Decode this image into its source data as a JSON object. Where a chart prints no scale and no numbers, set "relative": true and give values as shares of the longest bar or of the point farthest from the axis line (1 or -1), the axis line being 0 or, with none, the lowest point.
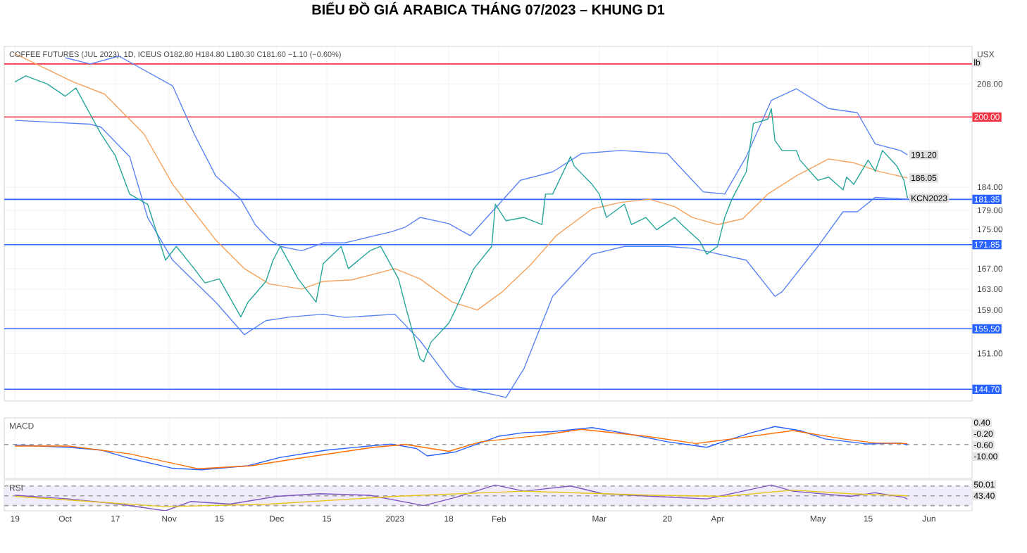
{
  "chart_data": [
    {
      "type": "line",
      "title": "BIỂU ĐỒ GIÁ ARABICA THÁNG 07/2023 – KHUNG D1",
      "subtitle": "COFFEE FUTURES (JUL 2023), 1D, ICEUS O182.80 H184.80 L180.30 C181.60 −1.10 (−0.60%)",
      "ylabel": "USX",
      "log": "y",
      "grid": true,
      "tick_labels": "y",
      "xlim": [
        "2022-09-16",
        "2023-06-13"
      ],
      "ylim": [
        142.7,
        217.5
      ],
      "xticks": [
        {
          "value": "2022-09-19",
          "label": null
        },
        {
          "value": "2022-10-03",
          "label": null
        },
        {
          "value": "2022-10-17",
          "label": null
        },
        {
          "value": "2022-11-01",
          "label": null
        },
        {
          "value": "2022-11-15",
          "label": null
        },
        {
          "value": "2022-12-01",
          "label": null
        },
        {
          "value": "2022-12-15",
          "label": null
        },
        {
          "value": "2023-01-03",
          "label": null
        },
        {
          "value": "2023-01-18",
          "label": null
        },
        {
          "value": "2023-02-01",
          "label": null
        },
        {
          "value": "2023-03-01",
          "label": null
        },
        {
          "value": "2023-03-20",
          "label": null
        },
        {
          "value": "2023-04-03",
          "label": null
        },
        {
          "value": "2023-05-01",
          "label": null
        },
        {
          "value": "2023-05-15",
          "label": null
        },
        {
          "value": "2023-06-01",
          "label": null
        }
      ],
      "yticks": [
        {
          "value": 208,
          "label": "208.00"
        },
        {
          "value": 184,
          "label": "184.00"
        },
        {
          "value": 179,
          "label": "179.00"
        },
        {
          "value": 175,
          "label": "175.00"
        },
        {
          "value": 167,
          "label": "167.00"
        },
        {
          "value": 163,
          "label": "163.00"
        },
        {
          "value": 159,
          "label": "159.00"
        },
        {
          "value": 151,
          "label": "151.00"
        }
      ],
      "series": [
        {
          "color": "#5b84f5",
          "x": [
            "2022-10-03",
            "2022-10-10",
            "2022-10-18",
            "2022-11-02",
            "2022-11-08",
            "2022-11-14",
            "2022-11-21",
            "2022-11-25",
            "2022-11-29",
            "2022-12-02",
            "2022-12-08",
            "2022-12-14",
            "2022-12-20",
            "2023-01-02",
            "2023-01-06",
            "2023-01-10",
            "2023-01-18",
            "2023-01-24",
            "2023-02-01",
            "2023-02-07",
            "2023-02-16",
            "2023-02-24",
            "2023-03-07",
            "2023-03-20",
            "2023-03-30",
            "2023-04-05",
            "2023-04-11",
            "2023-04-18",
            "2023-04-25",
            "2023-05-04",
            "2023-05-12",
            "2023-05-17",
            "2023-05-24",
            "2023-05-26"
          ],
          "values": [
            214.6,
            213,
            215,
            207.5,
            196,
            186.5,
            181.4,
            176,
            172.8,
            171.5,
            170.6,
            172.2,
            172.2,
            174.5,
            175.5,
            177.5,
            176.2,
            173.7,
            180.3,
            185.5,
            187.4,
            191.5,
            192.2,
            191.5,
            183,
            182.5,
            190.8,
            204,
            206.8,
            202,
            201,
            193.7,
            192.2,
            191.2
          ]
        },
        {
          "color": "#f5a25d",
          "x": [
            "2022-09-19",
            "2022-10-05",
            "2022-10-14",
            "2022-10-25",
            "2022-11-02",
            "2022-11-14",
            "2022-11-22",
            "2022-11-29",
            "2022-12-08",
            "2022-12-14",
            "2022-12-22",
            "2023-01-03",
            "2023-01-10",
            "2023-01-19",
            "2023-01-26",
            "2023-02-02",
            "2023-02-10",
            "2023-02-17",
            "2023-02-27",
            "2023-03-07",
            "2023-03-15",
            "2023-03-22",
            "2023-03-27",
            "2023-04-03",
            "2023-04-10",
            "2023-04-17",
            "2023-04-25",
            "2023-05-04",
            "2023-05-11",
            "2023-05-18",
            "2023-05-26"
          ],
          "values": [
            215.6,
            208.6,
            205.5,
            196,
            184.6,
            172.8,
            167,
            164,
            163,
            164.5,
            164.8,
            167,
            165,
            160.5,
            159,
            162.5,
            167.9,
            173.7,
            179.3,
            180.7,
            181.4,
            179.8,
            177.5,
            176,
            177.2,
            182.5,
            186.5,
            190.3,
            189.4,
            187.5,
            186.05
          ]
        },
        {
          "color": "#5b84f5",
          "x": [
            "2022-09-19",
            "2022-09-27",
            "2022-10-10",
            "2022-10-13",
            "2022-10-21",
            "2022-10-26",
            "2022-11-02",
            "2022-11-14",
            "2022-11-22",
            "2022-11-28",
            "2022-12-05",
            "2022-12-14",
            "2022-12-20",
            "2023-01-03",
            "2023-01-10",
            "2023-01-18",
            "2023-01-20",
            "2023-01-26",
            "2023-02-03",
            "2023-02-08",
            "2023-02-16",
            "2023-02-27",
            "2023-03-08",
            "2023-03-20",
            "2023-03-27",
            "2023-04-11",
            "2023-04-18",
            "2023-04-19",
            "2023-04-21",
            "2023-05-01",
            "2023-05-08",
            "2023-05-12",
            "2023-05-17",
            "2023-05-26"
          ],
          "values": [
            199.2,
            198.9,
            198.3,
            197.6,
            190.8,
            177.5,
            168.7,
            160.5,
            154.4,
            157,
            157.7,
            158.2,
            157.6,
            158.2,
            153.3,
            146.5,
            145.2,
            144.4,
            143.3,
            148.3,
            161.6,
            169.9,
            171.5,
            171.5,
            171.1,
            168.7,
            162.5,
            161.6,
            162.5,
            171.5,
            178.7,
            178.7,
            181.8,
            181.4
          ]
        },
        {
          "color": "#26a69a",
          "x": [
            "2022-09-19",
            "2022-09-22",
            "2022-09-28",
            "2022-10-03",
            "2022-10-06",
            "2022-10-13",
            "2022-10-17",
            "2022-10-21",
            "2022-10-26",
            "2022-10-31",
            "2022-11-03",
            "2022-11-08",
            "2022-11-11",
            "2022-11-15",
            "2022-11-21",
            "2022-11-23",
            "2022-11-28",
            "2022-11-30",
            "2022-12-02",
            "2022-12-07",
            "2022-12-12",
            "2022-12-14",
            "2022-12-19",
            "2022-12-21",
            "2022-12-27",
            "2022-12-30",
            "2023-01-04",
            "2023-01-06",
            "2023-01-10",
            "2023-01-11",
            "2023-01-13",
            "2023-01-18",
            "2023-01-20",
            "2023-01-25",
            "2023-01-30",
            "2023-01-31",
            "2023-02-03",
            "2023-02-08",
            "2023-02-13",
            "2023-02-14",
            "2023-02-16",
            "2023-02-21",
            "2023-02-22",
            "2023-02-27",
            "2023-03-01",
            "2023-03-03",
            "2023-03-08",
            "2023-03-10",
            "2023-03-14",
            "2023-03-17",
            "2023-03-22",
            "2023-03-24",
            "2023-03-29",
            "2023-03-31",
            "2023-04-03",
            "2023-04-05",
            "2023-04-07",
            "2023-04-11",
            "2023-04-13",
            "2023-04-17",
            "2023-04-18",
            "2023-04-19",
            "2023-04-21",
            "2023-04-25",
            "2023-04-26",
            "2023-05-01",
            "2023-05-04",
            "2023-05-08",
            "2023-05-09",
            "2023-05-11",
            "2023-05-15",
            "2023-05-17",
            "2023-05-19",
            "2023-05-23",
            "2023-05-25",
            "2023-05-26"
          ],
          "values": [
            208.5,
            210,
            208,
            205,
            207,
            196,
            191,
            182.5,
            180.3,
            168.7,
            171.5,
            167,
            164.2,
            165,
            157.7,
            160.5,
            164.5,
            168.7,
            171.5,
            165,
            160.5,
            168,
            171.5,
            167,
            170.6,
            171.5,
            165,
            159.6,
            150,
            149.5,
            153,
            156.5,
            159.2,
            167,
            171.5,
            180.3,
            176.8,
            177.5,
            176,
            182.5,
            182.5,
            190.8,
            188.7,
            184.6,
            182.5,
            177.5,
            180.3,
            176,
            177.5,
            174.9,
            177.5,
            176,
            172.6,
            169.9,
            171.5,
            177.5,
            181.4,
            187.4,
            198.5,
            199.5,
            202,
            194.5,
            192.2,
            192.2,
            190,
            185.5,
            186.2,
            183.4,
            186.2,
            184.6,
            190,
            187.5,
            192.2,
            188.7,
            185.5,
            181.6
          ]
        }
      ],
      "ref_lines": [
        {
          "axis": "y",
          "value": 213,
          "label": null,
          "color": "#f23645"
        },
        {
          "axis": "y",
          "value": 200,
          "label": "200.00",
          "color": "#f23645"
        },
        {
          "axis": "y",
          "value": 181.35,
          "label": "181.35",
          "color": "#2962ff"
        },
        {
          "axis": "y",
          "value": 171.85,
          "label": "171.85",
          "color": "#2962ff"
        },
        {
          "axis": "y",
          "value": 155.5,
          "label": "155.50",
          "color": "#2962ff"
        },
        {
          "axis": "y",
          "value": 144.7,
          "label": "144.70",
          "color": "#2962ff"
        }
      ],
      "annotations": [
        "lb",
        {
          "text": "191.20",
          "x": "2023-05-26",
          "y": 191.2
        },
        {
          "text": "186.05",
          "x": "2023-05-26",
          "y": 186.05
        },
        {
          "text": "KCN2023",
          "x": "2023-05-26",
          "y": 181.6
        }
      ]
    },
    {
      "type": "line",
      "title": "MACD",
      "grid": true,
      "relative": true,
      "tick_labels": false,
      "xlim": [
        "2022-09-16",
        "2023-06-13"
      ],
      "xticks": [
        {
          "value": "2022-09-19",
          "label": null
        },
        {
          "value": "2022-10-03",
          "label": null
        },
        {
          "value": "2022-10-17",
          "label": null
        },
        {
          "value": "2022-11-01",
          "label": null
        },
        {
          "value": "2022-11-15",
          "label": null
        },
        {
          "value": "2022-12-01",
          "label": null
        },
        {
          "value": "2022-12-15",
          "label": null
        },
        {
          "value": "2023-01-03",
          "label": null
        },
        {
          "value": "2023-01-18",
          "label": null
        },
        {
          "value": "2023-02-01",
          "label": null
        },
        {
          "value": "2023-03-01",
          "label": null
        },
        {
          "value": "2023-03-20",
          "label": null
        },
        {
          "value": "2023-04-03",
          "label": null
        },
        {
          "value": "2023-05-01",
          "label": null
        },
        {
          "value": "2023-05-15",
          "label": null
        },
        {
          "value": "2023-06-01",
          "label": null
        }
      ],
      "series": [
        {
          "color": "#2962ff",
          "x": [
            "2022-09-19",
            "2022-10-04",
            "2022-10-13",
            "2022-10-21",
            "2022-11-02",
            "2022-11-10",
            "2022-11-23",
            "2022-12-02",
            "2022-12-15",
            "2023-01-02",
            "2023-01-09",
            "2023-01-12",
            "2023-01-20",
            "2023-02-01",
            "2023-02-08",
            "2023-02-16",
            "2023-02-27",
            "2023-03-08",
            "2023-03-20",
            "2023-03-31",
            "2023-04-12",
            "2023-04-19",
            "2023-04-26",
            "2023-05-03",
            "2023-05-15",
            "2023-05-24",
            "2023-05-26"
          ],
          "values": [
            -0.02,
            -0.11,
            -0.22,
            -0.55,
            -0.94,
            -1,
            -0.84,
            -0.51,
            -0.22,
            0.02,
            -0.16,
            -0.45,
            -0.29,
            0.33,
            0.47,
            0.51,
            0.67,
            0.45,
            0.11,
            -0.11,
            0.45,
            0.71,
            0.55,
            0.22,
            0.02,
            0.06,
            -0.02
          ]
        },
        {
          "color": "#ff6d00",
          "x": [
            "2022-09-19",
            "2022-10-04",
            "2022-10-21",
            "2022-11-09",
            "2022-11-24",
            "2022-12-07",
            "2022-12-28",
            "2023-01-06",
            "2023-01-18",
            "2023-01-27",
            "2023-02-13",
            "2023-02-24",
            "2023-03-14",
            "2023-03-28",
            "2023-04-07",
            "2023-04-24",
            "2023-05-08",
            "2023-05-17",
            "2023-05-26"
          ],
          "values": [
            -0.06,
            -0.06,
            -0.37,
            -0.96,
            -0.84,
            -0.55,
            -0.11,
            0,
            -0.27,
            0.11,
            0.37,
            0.6,
            0.33,
            0.04,
            0.22,
            0.55,
            0.22,
            0.06,
            0.04
          ]
        }
      ],
      "ref_lines": [
        {
          "axis": "y",
          "value": 0,
          "label": null,
          "color": "#9e9e9e",
          "line_style": "dashed"
        }
      ],
      "annotations": [
        "0.40",
        "-0.20",
        "-0.60",
        "-10.00"
      ]
    },
    {
      "type": "line",
      "title": "RSI",
      "relative": true,
      "tick_labels": "x",
      "xlim": [
        "2022-09-16",
        "2023-06-13"
      ],
      "xticks": [
        {
          "value": "2022-09-19",
          "label": "19"
        },
        {
          "value": "2022-10-03",
          "label": "Oct"
        },
        {
          "value": "2022-10-17",
          "label": "17"
        },
        {
          "value": "2022-11-01",
          "label": "Nov"
        },
        {
          "value": "2022-11-15",
          "label": "15"
        },
        {
          "value": "2022-12-01",
          "label": "Dec"
        },
        {
          "value": "2022-12-15",
          "label": "15"
        },
        {
          "value": "2023-01-03",
          "label": "2023"
        },
        {
          "value": "2023-01-18",
          "label": "18"
        },
        {
          "value": "2023-02-01",
          "label": "Feb"
        },
        {
          "value": "2023-03-01",
          "label": "Mar"
        },
        {
          "value": "2023-03-20",
          "label": "20"
        },
        {
          "value": "2023-04-03",
          "label": "Apr"
        },
        {
          "value": "2023-05-01",
          "label": "May"
        },
        {
          "value": "2023-05-15",
          "label": "15"
        },
        {
          "value": "2023-06-01",
          "label": "Jun"
        }
      ],
      "series": [
        {
          "color": "#7e57c2",
          "x": [
            "2022-09-19",
            "2022-10-04",
            "2022-10-18",
            "2022-10-31",
            "2022-11-07",
            "2022-11-18",
            "2022-12-01",
            "2022-12-13",
            "2022-12-27",
            "2023-01-11",
            "2023-01-20",
            "2023-01-31",
            "2023-02-08",
            "2023-02-21",
            "2023-03-02",
            "2023-03-16",
            "2023-03-31",
            "2023-04-10",
            "2023-04-18",
            "2023-04-24",
            "2023-05-10",
            "2023-05-17",
            "2023-05-25",
            "2023-05-26"
          ],
          "values": [
            0.6,
            0.46,
            0.26,
            0,
            0.36,
            0.26,
            0.56,
            0.66,
            0.6,
            0.2,
            0.52,
            1,
            0.76,
            0.96,
            0.66,
            0.56,
            0.46,
            0.76,
            1,
            0.76,
            0.56,
            0.7,
            0.52,
            0.45
          ]
        },
        {
          "color": "#e6c619",
          "x": [
            "2022-09-19",
            "2022-10-31",
            "2022-11-29",
            "2023-01-03",
            "2023-02-08",
            "2023-03-16",
            "2023-04-05",
            "2023-04-24",
            "2023-05-10",
            "2023-05-26"
          ],
          "values": [
            0.56,
            0.16,
            0.26,
            0.56,
            0.76,
            0.6,
            0.56,
            0.8,
            0.66,
            0.58
          ]
        }
      ],
      "bands": [
        {
          "axis": "y",
          "from": 0.2,
          "to": 0.96,
          "label": null,
          "color": "#f1ecfa"
        }
      ],
      "ref_lines": [
        {
          "axis": "y",
          "value": 0.96,
          "label": null,
          "color": "#9e9e9e",
          "line_style": "dashed"
        },
        {
          "axis": "y",
          "value": 0.58,
          "label": null,
          "color": "#9e9e9e",
          "line_style": "dashed"
        },
        {
          "axis": "y",
          "value": 0.2,
          "label": null,
          "color": "#9e9e9e",
          "line_style": "dashed"
        }
      ],
      "annotations": [
        "50.01",
        "43.40"
      ]
    }
  ]
}
